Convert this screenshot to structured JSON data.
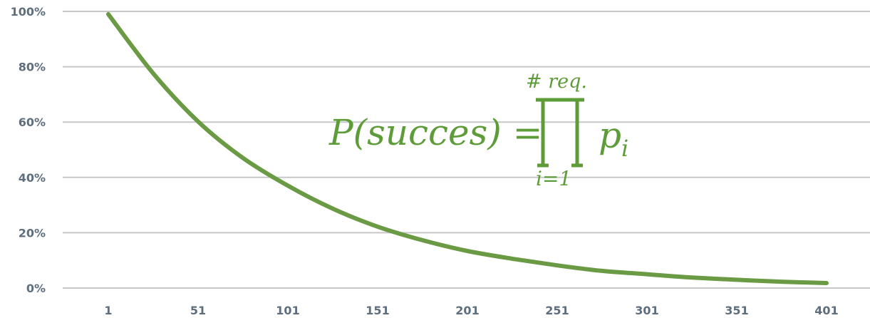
{
  "chart_data": {
    "type": "line",
    "title": "",
    "xlabel": "",
    "ylabel": "",
    "x_ticks": [
      "1",
      "51",
      "101",
      "151",
      "201",
      "251",
      "301",
      "351",
      "401"
    ],
    "y_ticks": [
      "0%",
      "20%",
      "40%",
      "60%",
      "80%",
      "100%"
    ],
    "xlim": [
      1,
      401
    ],
    "ylim": [
      0,
      100
    ],
    "grid": true,
    "legend": "none",
    "series": [
      {
        "color": "#6b9a45",
        "x": [
          1,
          26,
          51,
          76,
          101,
          126,
          151,
          176,
          201,
          226,
          251,
          276,
          301,
          326,
          351,
          376,
          401
        ],
        "y": [
          99,
          77.6,
          60.2,
          47.0,
          37.0,
          28.7,
          22.2,
          17.3,
          13.4,
          10.6,
          8.2,
          6.2,
          5.0,
          3.8,
          3.0,
          2.3,
          1.8
        ]
      }
    ]
  },
  "annotation": {
    "color": "#5e9c3a",
    "main": "P(succes) =",
    "upper": "# req.",
    "lower": "i=1",
    "term": "p",
    "term_sub": "i"
  }
}
